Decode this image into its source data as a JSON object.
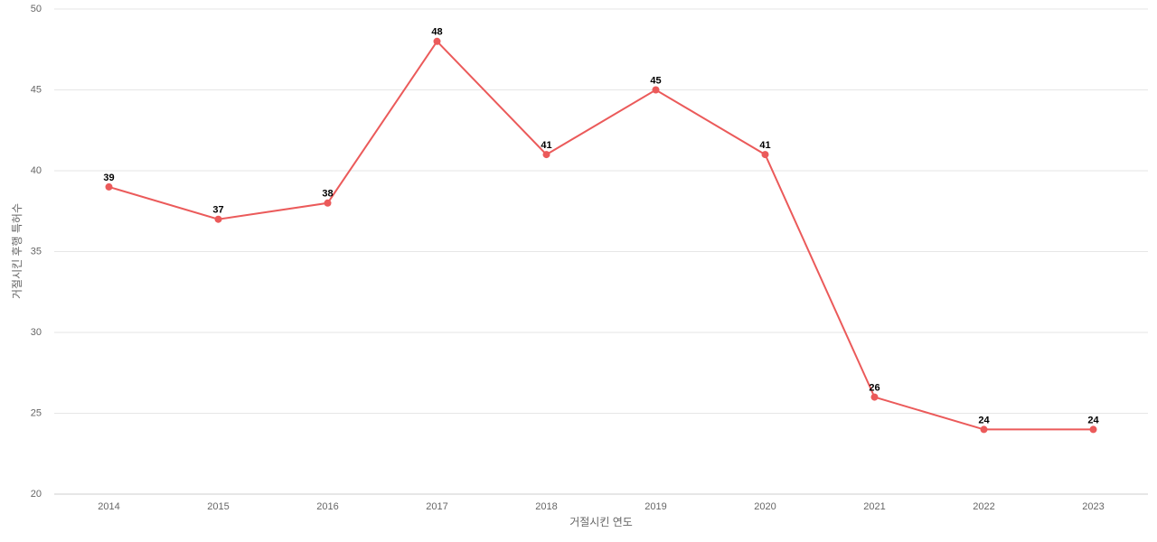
{
  "chart_data": {
    "type": "line",
    "x_label": "거절시킨 연도",
    "y_label": "거절시킨 후행 특허수",
    "categories": [
      "2014",
      "2015",
      "2016",
      "2017",
      "2018",
      "2019",
      "2020",
      "2021",
      "2022",
      "2023"
    ],
    "values": [
      39,
      37,
      38,
      48,
      41,
      45,
      41,
      26,
      24,
      24
    ],
    "color": "#eb5a5a",
    "ylim": [
      20,
      50
    ],
    "yticks": [
      20,
      25,
      30,
      35,
      40,
      45,
      50
    ],
    "grid": true
  }
}
